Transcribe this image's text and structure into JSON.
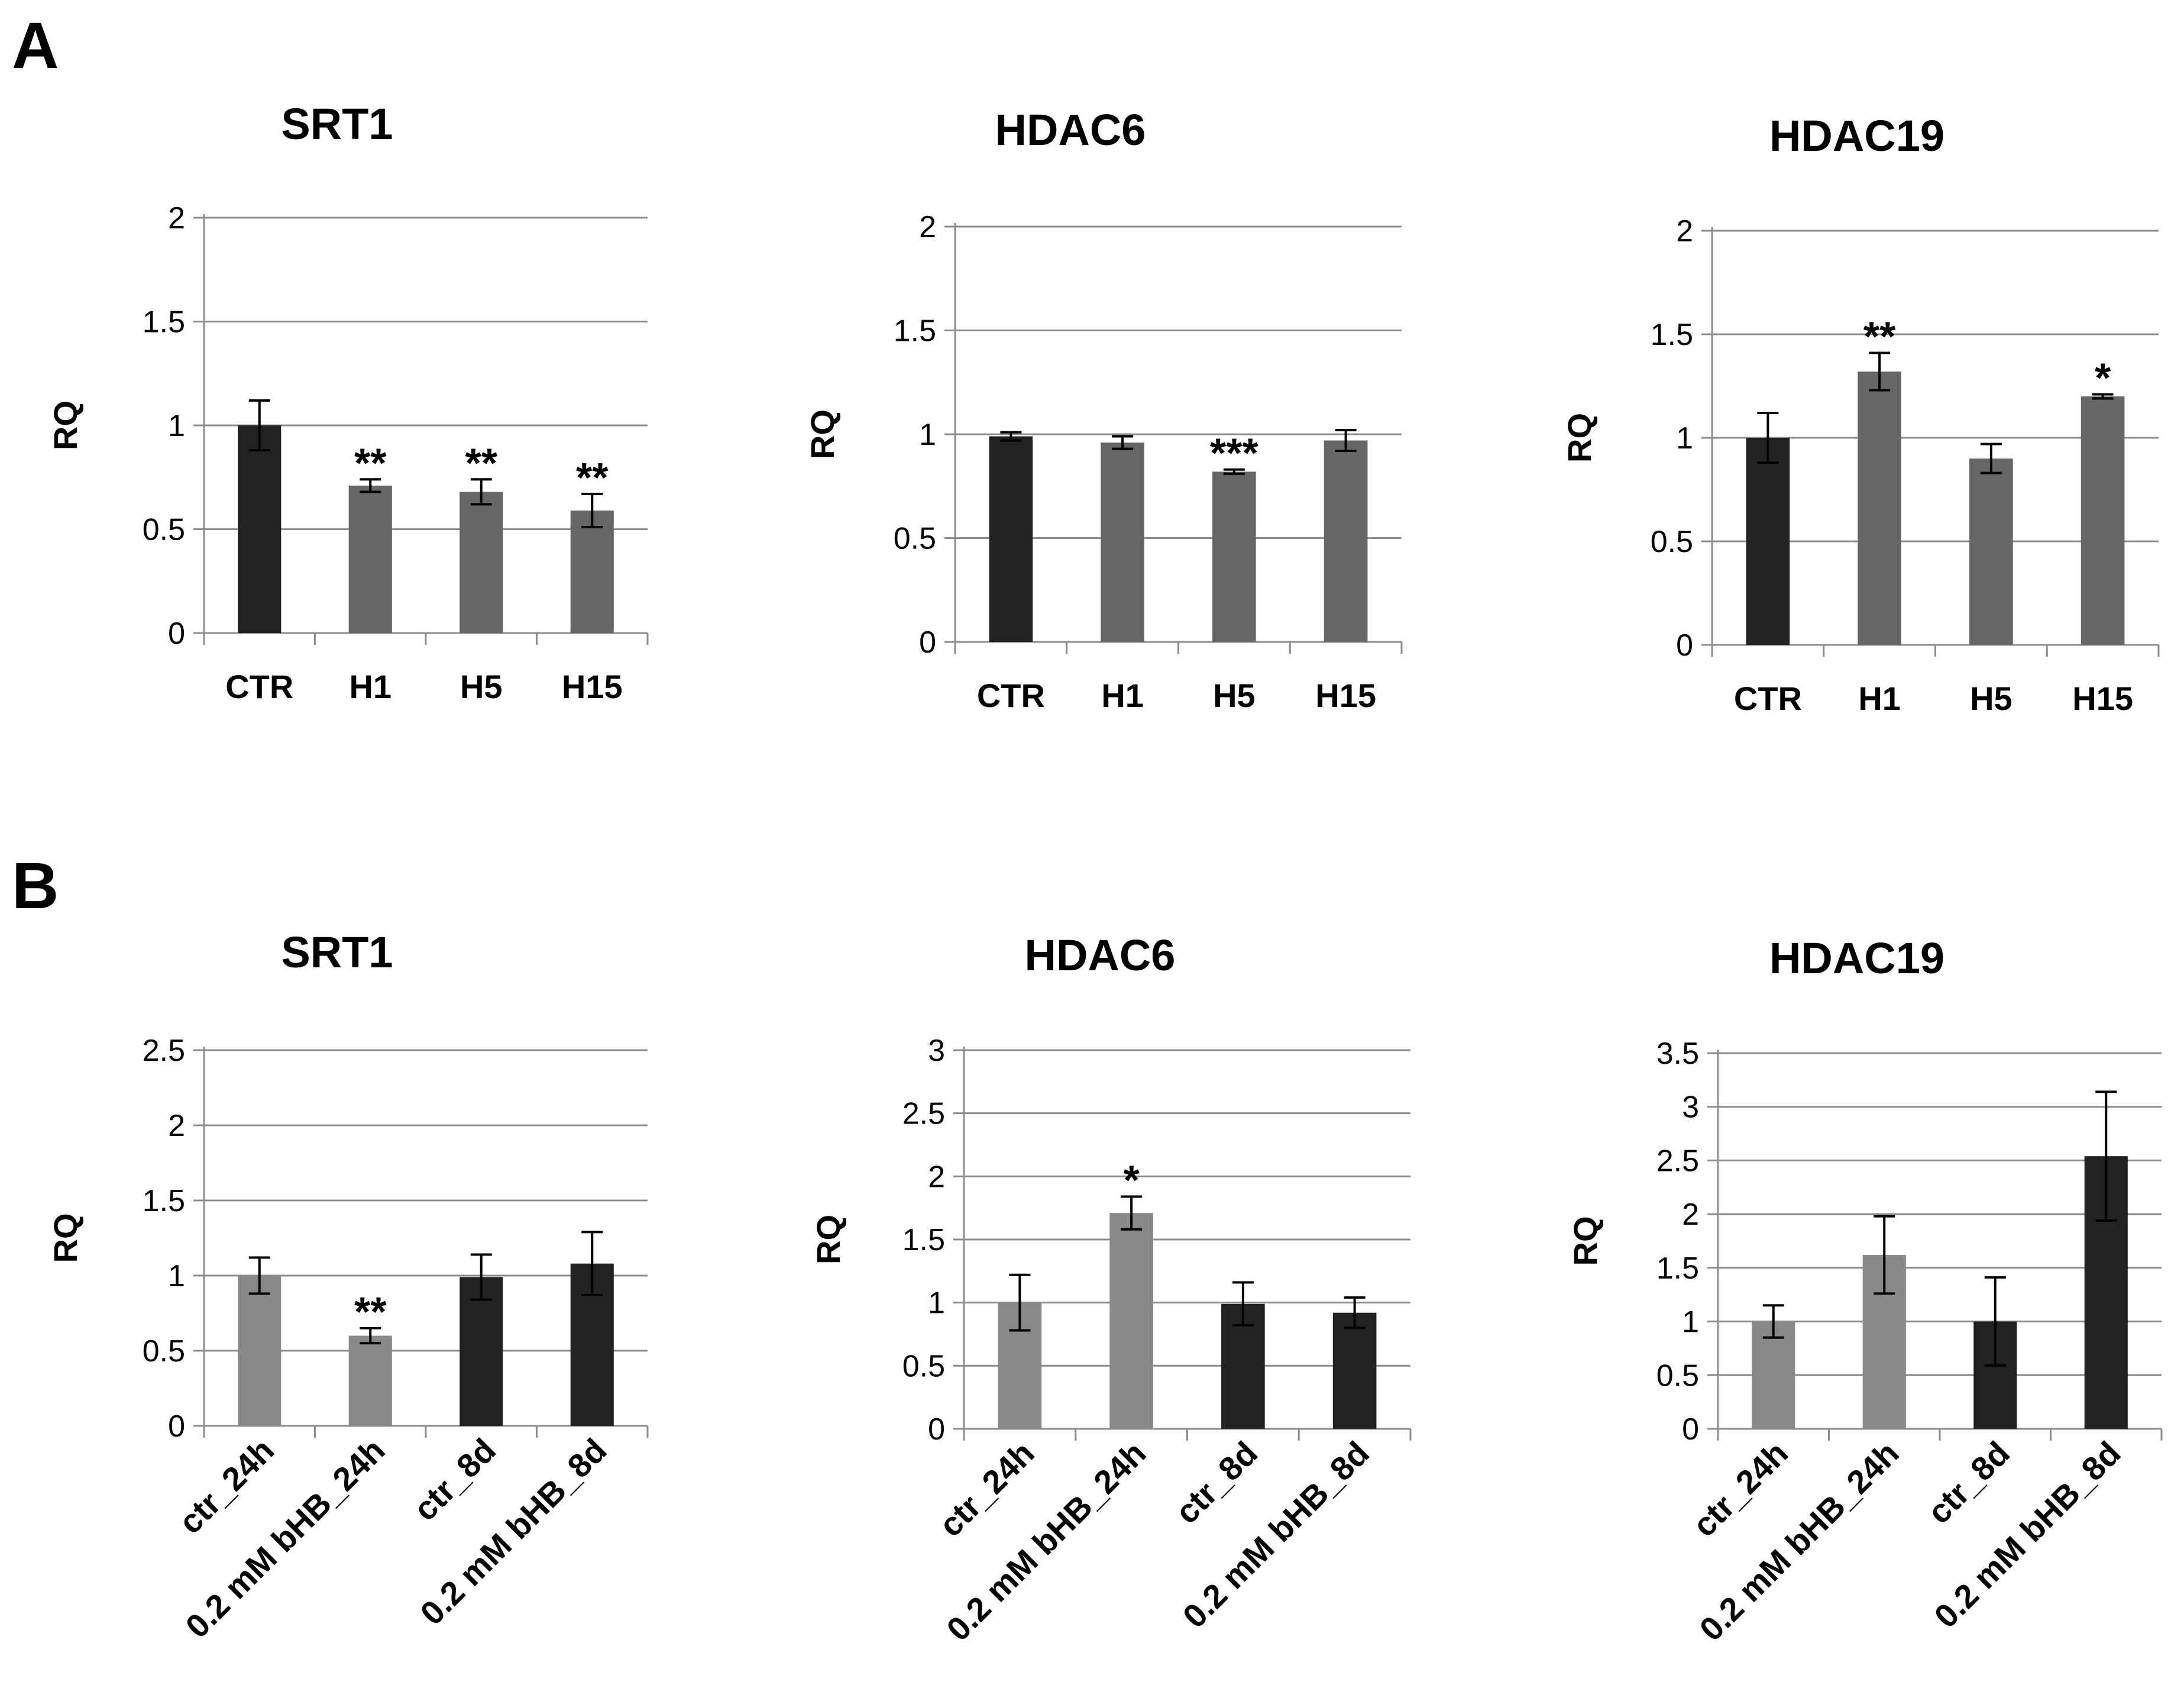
{
  "panels": [
    {
      "letter": "A"
    },
    {
      "letter": "B"
    }
  ],
  "chart_data": [
    {
      "type": "bar",
      "panel": "A",
      "title": "SRT1",
      "ylabel": "RQ",
      "xlabel": "",
      "ylim": [
        0,
        2
      ],
      "yticks": [
        0,
        0.5,
        1,
        1.5,
        2
      ],
      "ytick_labels": [
        "0",
        "0.5",
        "1",
        "1.5",
        "2"
      ],
      "grid": true,
      "categories": [
        "CTR",
        "H1",
        "H5",
        "H15"
      ],
      "values": [
        1.0,
        0.71,
        0.68,
        0.59
      ],
      "errors": [
        0.12,
        0.03,
        0.06,
        0.08
      ],
      "significance": [
        "",
        "**",
        "**",
        "**"
      ],
      "colors": [
        "#222222",
        "#666666",
        "#666666",
        "#666666"
      ]
    },
    {
      "type": "bar",
      "panel": "A",
      "title": "HDAC6",
      "ylabel": "RQ",
      "xlabel": "",
      "ylim": [
        0,
        2
      ],
      "yticks": [
        0,
        0.5,
        1,
        1.5,
        2
      ],
      "ytick_labels": [
        "0",
        "0.5",
        "1",
        "1.5",
        "2"
      ],
      "grid": true,
      "categories": [
        "CTR",
        "H1",
        "H5",
        "H15"
      ],
      "values": [
        0.99,
        0.96,
        0.82,
        0.97
      ],
      "errors": [
        0.02,
        0.03,
        0.01,
        0.05
      ],
      "significance": [
        "",
        "",
        "***",
        ""
      ],
      "colors": [
        "#222222",
        "#666666",
        "#666666",
        "#666666"
      ]
    },
    {
      "type": "bar",
      "panel": "A",
      "title": "HDAC19",
      "ylabel": "RQ",
      "xlabel": "",
      "ylim": [
        0,
        2
      ],
      "yticks": [
        0,
        0.5,
        1,
        1.5,
        2
      ],
      "ytick_labels": [
        "0",
        "0.5",
        "1",
        "1.5",
        "2"
      ],
      "grid": true,
      "categories": [
        "CTR",
        "H1",
        "H5",
        "H15"
      ],
      "values": [
        1.0,
        1.32,
        0.9,
        1.2
      ],
      "errors": [
        0.12,
        0.09,
        0.07,
        0.01
      ],
      "significance": [
        "",
        "**",
        "",
        "*"
      ],
      "colors": [
        "#222222",
        "#666666",
        "#666666",
        "#666666"
      ]
    },
    {
      "type": "bar",
      "panel": "B",
      "title": "SRT1",
      "ylabel": "RQ",
      "xlabel": "",
      "ylim": [
        0,
        2.5
      ],
      "yticks": [
        0,
        0.5,
        1,
        1.5,
        2,
        2.5
      ],
      "ytick_labels": [
        "0",
        "0.5",
        "1",
        "1.5",
        "2",
        "2.5"
      ],
      "grid": true,
      "categories": [
        "ctr_24h",
        "0.2 mM bHB_24h",
        "ctr_8d",
        "0.2 mM bHB_8d"
      ],
      "values": [
        1.0,
        0.6,
        0.99,
        1.08
      ],
      "errors": [
        0.12,
        0.05,
        0.15,
        0.21
      ],
      "significance": [
        "",
        "**",
        "",
        ""
      ],
      "colors": [
        "#888888",
        "#888888",
        "#222222",
        "#222222"
      ]
    },
    {
      "type": "bar",
      "panel": "B",
      "title": "HDAC6",
      "ylabel": "RQ",
      "xlabel": "",
      "ylim": [
        0,
        3
      ],
      "yticks": [
        0,
        0.5,
        1,
        1.5,
        2,
        2.5,
        3
      ],
      "ytick_labels": [
        "0",
        "0.5",
        "1",
        "1.5",
        "2",
        "2.5",
        "3"
      ],
      "grid": true,
      "categories": [
        "ctr_24h",
        "0.2 mM bHB_24h",
        "ctr_8d",
        "0.2 mM bHB_8d"
      ],
      "values": [
        1.0,
        1.71,
        0.99,
        0.92
      ],
      "errors": [
        0.22,
        0.13,
        0.17,
        0.12
      ],
      "significance": [
        "",
        "*",
        "",
        ""
      ],
      "colors": [
        "#888888",
        "#888888",
        "#222222",
        "#222222"
      ]
    },
    {
      "type": "bar",
      "panel": "B",
      "title": "HDAC19",
      "ylabel": "RQ",
      "xlabel": "",
      "ylim": [
        0,
        3.5
      ],
      "yticks": [
        0,
        0.5,
        1,
        1.5,
        2,
        2.5,
        3,
        3.5
      ],
      "ytick_labels": [
        "0",
        "0.5",
        "1",
        "1.5",
        "2",
        "2.5",
        "3",
        "3.5"
      ],
      "grid": true,
      "categories": [
        "ctr_24h",
        "0.2 mM bHB_24h",
        "ctr_8d",
        "0.2 mM bHB_8d"
      ],
      "values": [
        1.0,
        1.62,
        1.0,
        2.54
      ],
      "errors": [
        0.15,
        0.36,
        0.41,
        0.6
      ],
      "significance": [
        "",
        "",
        "",
        ""
      ],
      "colors": [
        "#888888",
        "#888888",
        "#222222",
        "#222222"
      ]
    }
  ]
}
